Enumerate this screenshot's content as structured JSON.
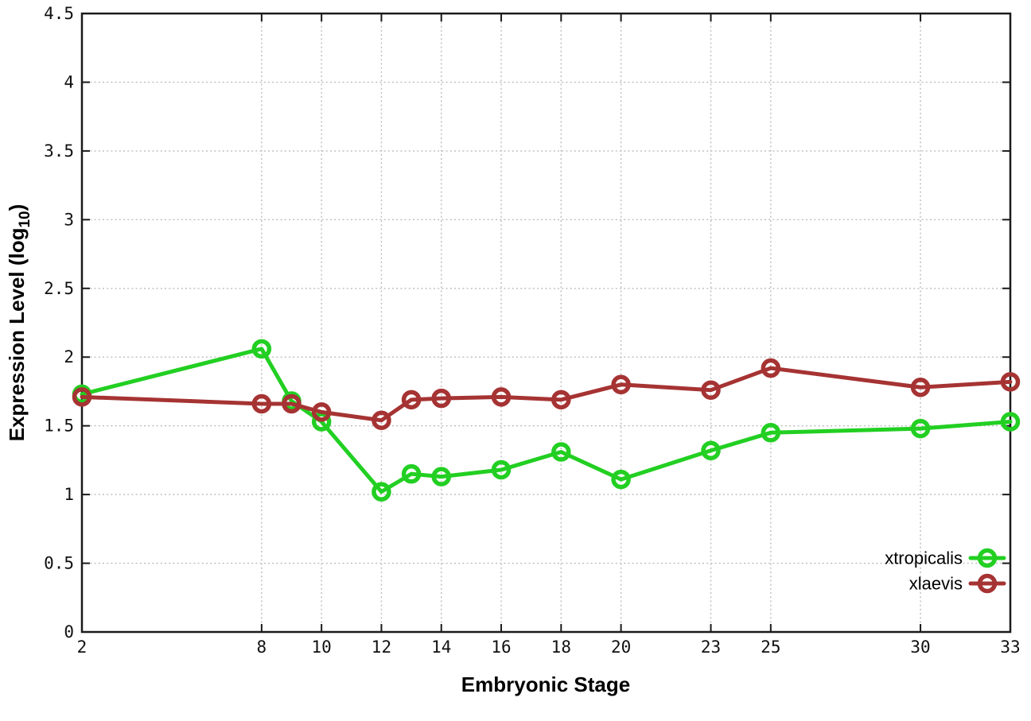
{
  "figure": {
    "background": "#ffffff",
    "ylabel_prefix": "Expression Level (log",
    "ylabel_sub": "10",
    "ylabel_suffix": ")"
  },
  "chart_data": {
    "type": "line",
    "title": "",
    "xlabel": "Embryonic Stage",
    "ylabel": "Expression Level (log10)",
    "x": [
      2,
      8,
      9,
      10,
      12,
      13,
      14,
      16,
      18,
      20,
      23,
      25,
      30,
      33
    ],
    "xticks": [
      2,
      8,
      10,
      12,
      14,
      16,
      18,
      20,
      23,
      25,
      30,
      33
    ],
    "yticks": [
      0,
      0.5,
      1,
      1.5,
      2,
      2.5,
      3,
      3.5,
      4,
      4.5
    ],
    "xlim": [
      2,
      33
    ],
    "ylim": [
      0,
      4.5
    ],
    "grid": true,
    "grid_color": "#bcbcbc",
    "frame_color": "#1a1a1a",
    "legend_position": "bottom-right",
    "series": [
      {
        "name": "xtropicalis",
        "color": "#22CF22",
        "values": [
          1.73,
          2.06,
          1.68,
          1.53,
          1.02,
          1.15,
          1.13,
          1.18,
          1.31,
          1.11,
          1.32,
          1.45,
          1.48,
          1.53
        ]
      },
      {
        "name": "xlaevis",
        "color": "#A63333",
        "values": [
          1.71,
          1.66,
          1.66,
          1.6,
          1.54,
          1.69,
          1.7,
          1.71,
          1.69,
          1.8,
          1.76,
          1.92,
          1.78,
          1.82
        ]
      }
    ]
  }
}
